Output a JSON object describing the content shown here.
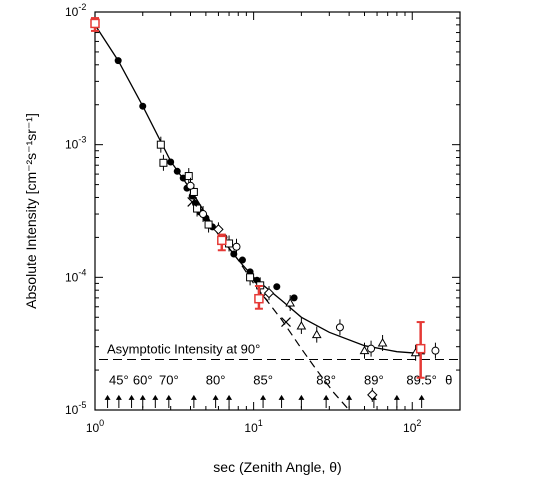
{
  "chart_data": {
    "type": "scatter",
    "x_scale": "log",
    "y_scale": "log",
    "xlim": [
      1,
      200
    ],
    "ylim": [
      1e-05,
      0.01
    ],
    "xlabel": "sec (Zenith Angle, θ)",
    "ylabel": "Absolute Intensity [cm⁻²s⁻¹sr⁻¹]",
    "x_ticks": [
      {
        "value": 1,
        "base": "10",
        "exp": "0"
      },
      {
        "value": 10,
        "base": "10",
        "exp": "1"
      },
      {
        "value": 100,
        "base": "10",
        "exp": "2"
      }
    ],
    "y_ticks": [
      {
        "value": 1e-05,
        "base": "10",
        "exp": "-5"
      },
      {
        "value": 0.0001,
        "base": "10",
        "exp": "-4"
      },
      {
        "value": 0.001,
        "base": "10",
        "exp": "-3"
      },
      {
        "value": 0.01,
        "base": "10",
        "exp": "-2"
      }
    ],
    "asymptote": {
      "value": 2.4e-05,
      "label": "Asymptotic Intensity at 90°"
    },
    "angle_markers": [
      {
        "label": "45°",
        "x": 1.414
      },
      {
        "label": "60°",
        "x": 2.0
      },
      {
        "label": "70°",
        "x": 2.92
      },
      {
        "label": "80°",
        "x": 5.76
      },
      {
        "label": "85°",
        "x": 11.47
      },
      {
        "label": "88°",
        "x": 28.65
      },
      {
        "label": "89°",
        "x": 57.3
      },
      {
        "label": "89.5°",
        "x": 114.6
      },
      {
        "label": "θ",
        "x": 170
      }
    ],
    "solid_curve": [
      [
        1.0,
        0.008
      ],
      [
        1.4,
        0.0043
      ],
      [
        2.0,
        0.00195
      ],
      [
        3.0,
        0.00075
      ],
      [
        4.0,
        0.00046
      ],
      [
        6.0,
        0.00021
      ],
      [
        8.0,
        0.000135
      ],
      [
        10.0,
        0.0001
      ],
      [
        15.0,
        6.7e-05
      ],
      [
        20.0,
        5e-05
      ],
      [
        30.0,
        3.85e-05
      ],
      [
        50.0,
        3.05e-05
      ],
      [
        80.0,
        2.75e-05
      ],
      [
        120.0,
        2.65e-05
      ]
    ],
    "dashed_curve": [
      [
        6.0,
        0.00021
      ],
      [
        8.0,
        0.000135
      ],
      [
        10.0,
        9e-05
      ],
      [
        15.0,
        4.8e-05
      ],
      [
        20.0,
        2.9e-05
      ],
      [
        25.0,
        2e-05
      ],
      [
        32.0,
        1.35e-05
      ],
      [
        40.0,
        1e-05
      ]
    ],
    "series": [
      {
        "marker": "filled-circle",
        "points": [
          {
            "x": 1.4,
            "y": 0.0043
          },
          {
            "x": 2.0,
            "y": 0.00195
          },
          {
            "x": 3.0,
            "y": 0.00074
          },
          {
            "x": 3.3,
            "y": 0.00063
          },
          {
            "x": 3.6,
            "y": 0.00056
          },
          {
            "x": 3.8,
            "y": 0.00047
          },
          {
            "x": 4.1,
            "y": 0.00041
          },
          {
            "x": 4.3,
            "y": 0.00036
          },
          {
            "x": 4.6,
            "y": 0.00031
          },
          {
            "x": 5.0,
            "y": 0.00028
          },
          {
            "x": 5.5,
            "y": 0.00024
          },
          {
            "x": 6.5,
            "y": 0.0002
          },
          {
            "x": 7.5,
            "y": 0.00015
          },
          {
            "x": 8.5,
            "y": 0.000135
          },
          {
            "x": 9.5,
            "y": 0.00011
          },
          {
            "x": 10.5,
            "y": 9.5e-05
          },
          {
            "x": 14.0,
            "y": 8.5e-05
          },
          {
            "x": 18.0,
            "y": 7e-05
          }
        ]
      },
      {
        "marker": "open-square",
        "points": [
          {
            "x": 2.6,
            "y": 0.001
          },
          {
            "x": 2.7,
            "y": 0.00073
          },
          {
            "x": 3.9,
            "y": 0.00058
          },
          {
            "x": 4.2,
            "y": 0.00044
          },
          {
            "x": 4.4,
            "y": 0.00033
          },
          {
            "x": 5.2,
            "y": 0.00025
          },
          {
            "x": 7.0,
            "y": 0.00018
          },
          {
            "x": 9.5,
            "y": 0.0001
          },
          {
            "x": 11.0,
            "y": 8.7e-05
          }
        ]
      },
      {
        "marker": "open-circle",
        "points": [
          {
            "x": 4.0,
            "y": 0.00049
          },
          {
            "x": 4.8,
            "y": 0.0003
          },
          {
            "x": 7.8,
            "y": 0.00017
          },
          {
            "x": 35.0,
            "y": 4.2e-05
          },
          {
            "x": 55.0,
            "y": 2.9e-05
          },
          {
            "x": 140.0,
            "y": 2.8e-05
          }
        ]
      },
      {
        "marker": "open-triangle",
        "points": [
          {
            "x": 17.0,
            "y": 6.4e-05
          },
          {
            "x": 20.0,
            "y": 4.3e-05
          },
          {
            "x": 25.0,
            "y": 3.7e-05
          },
          {
            "x": 50.0,
            "y": 2.8e-05
          },
          {
            "x": 65.0,
            "y": 3.2e-05
          },
          {
            "x": 105.0,
            "y": 2.7e-05
          }
        ]
      },
      {
        "marker": "cross",
        "points": [
          {
            "x": 4.1,
            "y": 0.00037
          },
          {
            "x": 11.5,
            "y": 7.2e-05
          },
          {
            "x": 16.0,
            "y": 4.6e-05
          }
        ]
      },
      {
        "marker": "open-diamond",
        "points": [
          {
            "x": 6.0,
            "y": 0.00023
          },
          {
            "x": 12.5,
            "y": 7.6e-05
          },
          {
            "x": 56.0,
            "y": 1.3e-05
          }
        ]
      },
      {
        "marker": "red-open-square",
        "color": "#e53935",
        "points": [
          {
            "x": 1.0,
            "y": 0.0082,
            "err_low": 0.0072,
            "err_high": 0.009
          },
          {
            "x": 6.3,
            "y": 0.00019,
            "err_low": 0.00016,
            "err_high": 0.00021
          },
          {
            "x": 10.8,
            "y": 6.9e-05,
            "err_low": 5.8e-05,
            "err_high": 8.6e-05
          },
          {
            "x": 113.0,
            "y": 2.9e-05,
            "err_low": 1.75e-05,
            "err_high": 4.6e-05
          }
        ]
      }
    ]
  }
}
